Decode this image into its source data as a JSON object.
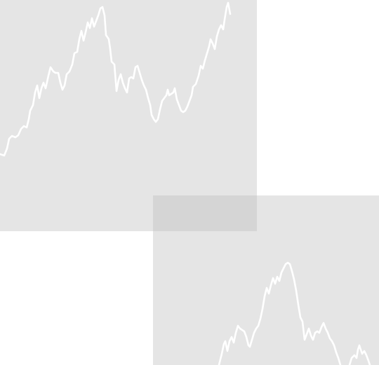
{
  "background_color": "#ffffff",
  "panels": [
    {
      "name": "panel-top-left",
      "fill_color": "#e4e4e4",
      "line_color": "#ffffff"
    },
    {
      "name": "panel-bottom-right",
      "fill_color": "#e4e4e4",
      "line_color": "#ffffff"
    }
  ],
  "overlap_color": "#cfcfcf"
}
